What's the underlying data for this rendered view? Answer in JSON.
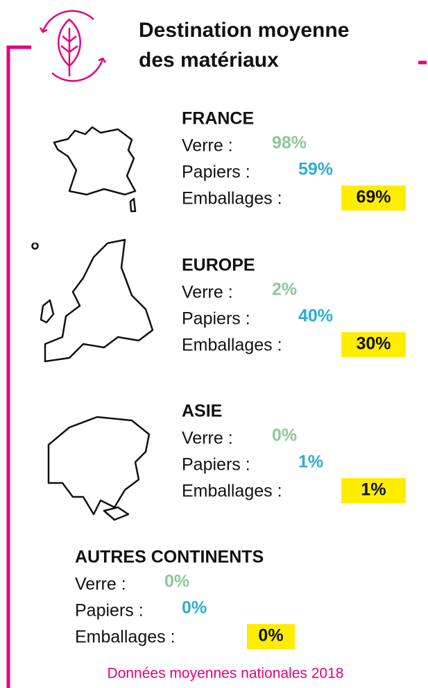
{
  "header": {
    "title_lines": [
      "Destination moyenne",
      "des matériaux"
    ]
  },
  "regions": [
    {
      "name": "FRANCE",
      "items": [
        {
          "label": "Verre :",
          "value": "98%"
        },
        {
          "label": "Papiers :",
          "value": "59%"
        },
        {
          "label": "Emballages :",
          "value": "69%"
        }
      ]
    },
    {
      "name": "EUROPE",
      "items": [
        {
          "label": "Verre :",
          "value": "2%"
        },
        {
          "label": "Papiers :",
          "value": "40%"
        },
        {
          "label": "Emballages :",
          "value": "30%"
        }
      ]
    },
    {
      "name": "ASIE",
      "items": [
        {
          "label": "Verre :",
          "value": "0%"
        },
        {
          "label": "Papiers :",
          "value": "1%"
        },
        {
          "label": "Emballages :",
          "value": "1%"
        }
      ]
    },
    {
      "name": "AUTRES CONTINENTS",
      "items": [
        {
          "label": "Verre :",
          "value": "0%"
        },
        {
          "label": "Papiers :",
          "value": "0%"
        },
        {
          "label": "Emballages :",
          "value": "0%"
        }
      ]
    }
  ],
  "footer": "Données moyennes nationales 2018"
}
